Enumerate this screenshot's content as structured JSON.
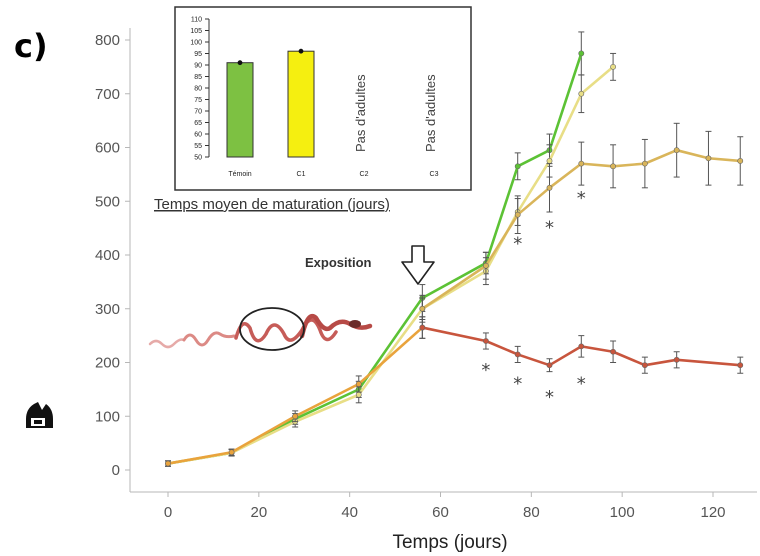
{
  "panel_label": "c)",
  "annotation": "Exposition",
  "colors": {
    "green": "#5cc235",
    "lightyellow": "#e8de86",
    "orange": "#e9a33c",
    "red": "#c8553d",
    "gold": "#d9b55a",
    "inset_green": "#7dc142",
    "inset_yellow": "#f5ef10"
  },
  "chart_data": [
    {
      "type": "line",
      "xlabel": "Temps (jours)",
      "ylabel": "",
      "xlim": [
        -5,
        128
      ],
      "ylim": [
        -15,
        840
      ],
      "xticks": [
        "0",
        "20",
        "40",
        "60",
        "80",
        "100",
        "120"
      ],
      "yticks": [
        "0",
        "100",
        "200",
        "300",
        "400",
        "500",
        "600",
        "700",
        "800"
      ],
      "grid": false,
      "series": [
        {
          "color_key": "green",
          "x": [
            0,
            14,
            28,
            42,
            56,
            70,
            77,
            84,
            91
          ],
          "y": [
            12,
            32,
            95,
            150,
            320,
            385,
            565,
            595,
            775
          ],
          "err": [
            5,
            6,
            10,
            15,
            25,
            20,
            25,
            30,
            40
          ]
        },
        {
          "color_key": "lightyellow",
          "x": [
            0,
            14,
            28,
            42,
            56,
            70,
            77,
            84,
            91,
            98
          ],
          "y": [
            12,
            32,
            90,
            140,
            300,
            370,
            480,
            575,
            700,
            750
          ],
          "err": [
            5,
            6,
            10,
            15,
            25,
            25,
            25,
            30,
            35,
            25
          ]
        },
        {
          "color_key": "orange",
          "x": [
            0,
            14,
            28,
            42,
            56
          ],
          "y": [
            12,
            33,
            100,
            160,
            265
          ],
          "err": [
            5,
            6,
            10,
            15,
            20
          ]
        },
        {
          "color_key": "red",
          "x": [
            56,
            70,
            77,
            84,
            91,
            98,
            105,
            112,
            126
          ],
          "y": [
            265,
            240,
            215,
            195,
            230,
            220,
            195,
            205,
            195
          ],
          "err": [
            20,
            15,
            15,
            12,
            20,
            20,
            15,
            15,
            15
          ]
        },
        {
          "color_key": "gold",
          "x": [
            56,
            70,
            77,
            84,
            91,
            98,
            105,
            112,
            119,
            126
          ],
          "y": [
            300,
            380,
            475,
            525,
            570,
            565,
            570,
            595,
            580,
            575
          ],
          "err": [
            20,
            25,
            35,
            45,
            40,
            40,
            45,
            50,
            50,
            45
          ]
        }
      ],
      "significance_marks": [
        {
          "x": 70,
          "y": 190,
          "label": "*"
        },
        {
          "x": 77,
          "y": 165,
          "label": "*"
        },
        {
          "x": 84,
          "y": 140,
          "label": "*"
        },
        {
          "x": 91,
          "y": 165,
          "label": "*"
        },
        {
          "x": 77,
          "y": 425,
          "label": "*"
        },
        {
          "x": 84,
          "y": 455,
          "label": "*"
        },
        {
          "x": 91,
          "y": 510,
          "label": "*"
        }
      ]
    },
    {
      "type": "bar",
      "title": "Temps moyen de maturation (jours)",
      "categories": [
        "Témoin",
        "C1",
        "C2",
        "C3"
      ],
      "values": [
        91,
        96,
        null,
        null
      ],
      "errors": [
        0.8,
        0.8,
        null,
        null
      ],
      "ylim": [
        50,
        110
      ],
      "yticks": [
        "50",
        "55",
        "60",
        "65",
        "70",
        "75",
        "80",
        "85",
        "90",
        "95",
        "100",
        "105",
        "110"
      ],
      "notes": [
        "Pas d'adultes",
        "Pas d'adultes"
      ],
      "bar_color_keys": [
        "inset_green",
        "inset_yellow"
      ]
    }
  ]
}
